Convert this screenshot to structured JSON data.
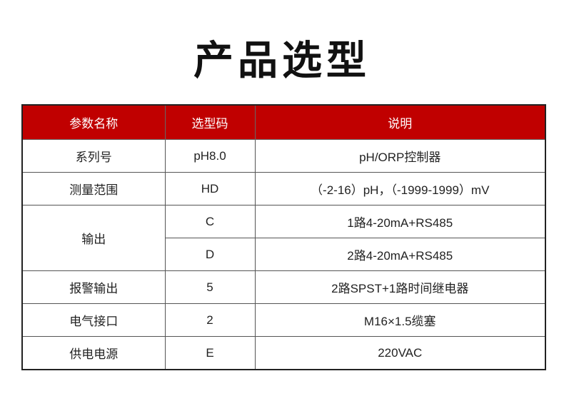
{
  "title": "产品选型",
  "table": {
    "headers": [
      "参数名称",
      "选型码",
      "说明"
    ],
    "rows": [
      {
        "param": "系列号",
        "code": "pH8.0",
        "desc": "pH/ORP控制器"
      },
      {
        "param": "测量范围",
        "code": "HD",
        "desc": "（-2-16）pH，（-1999-1999）mV"
      },
      {
        "param": "输出",
        "code": "C",
        "desc": "1路4-20mA+RS485"
      },
      {
        "param": "",
        "code": "D",
        "desc": "2路4-20mA+RS485"
      },
      {
        "param": "报警输出",
        "code": "5",
        "desc": "2路SPST+1路时间继电器"
      },
      {
        "param": "电气接口",
        "code": "2",
        "desc": "M16×1.5缆塞"
      },
      {
        "param": "供电电源",
        "code": "E",
        "desc": "220VAC"
      }
    ]
  },
  "colors": {
    "header_bg": "#c00000",
    "header_text": "#ffffff"
  }
}
